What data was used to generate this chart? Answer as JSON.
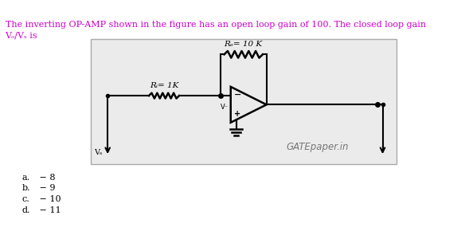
{
  "title_line1": "The inverting OP-AMP shown in the figure has an open loop gain of 100. The closed loop gain",
  "title_line2": "Vₒ/Vₛ is",
  "title_color": "#cc00cc",
  "bg_color": "#ffffff",
  "circuit_bg": "#ebebeb",
  "rf_label": "Rₑ= 10 K",
  "ri_label": "Rᵢ= 1K",
  "gatepaper": "GATEpaper.in",
  "options": [
    [
      "a.",
      " − 8"
    ],
    [
      "b.",
      " − 9"
    ],
    [
      "c.",
      " − 10"
    ],
    [
      "d.",
      " − 11"
    ]
  ]
}
